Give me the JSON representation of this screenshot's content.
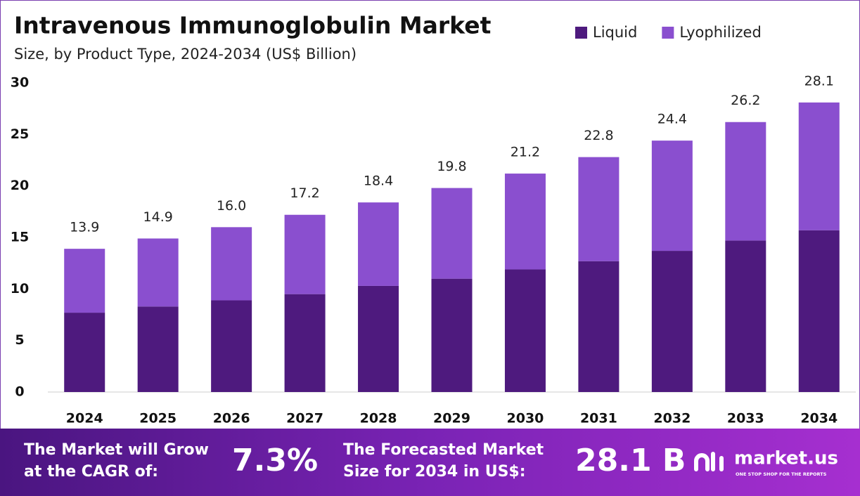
{
  "chart_data": {
    "type": "stacked_bar",
    "title": "Intravenous Immunoglobulin Market",
    "subtitle": "Size, by Product Type, 2024-2034 (US$ Billion)",
    "categories": [
      "2024",
      "2025",
      "2026",
      "2027",
      "2028",
      "2029",
      "2030",
      "2031",
      "2032",
      "2033",
      "2034"
    ],
    "series": [
      {
        "name": "Liquid",
        "color": "#4e1a7e",
        "values": [
          7.7,
          8.3,
          8.9,
          9.5,
          10.3,
          11.0,
          11.9,
          12.7,
          13.7,
          14.7,
          15.7
        ]
      },
      {
        "name": "Lyophilized",
        "color": "#8a4fcf",
        "values": [
          6.2,
          6.6,
          7.1,
          7.7,
          8.1,
          8.8,
          9.3,
          10.1,
          10.7,
          11.5,
          12.4
        ]
      }
    ],
    "totals": {
      "values": [
        13.9,
        14.9,
        16.0,
        17.2,
        18.4,
        19.8,
        21.2,
        22.8,
        24.4,
        26.2,
        28.1
      ],
      "value_labels": [
        "13.9",
        "14.9",
        "16.0",
        "17.2",
        "18.4",
        "19.8",
        "21.2",
        "22.8",
        "24.4",
        "26.2",
        "28.1"
      ]
    },
    "ylim": [
      0,
      30
    ],
    "yticks": [
      0,
      5,
      10,
      15,
      20,
      25,
      30
    ],
    "grid": false,
    "legend": "top-right"
  },
  "footer": {
    "cagr_text": [
      "The Market will Grow",
      "at the CAGR of:"
    ],
    "cagr_value": "7.3%",
    "forecast_text": [
      "The Forecasted Market",
      "Size for 2034 in US$:"
    ],
    "forecast_value": "28.1 B",
    "brand": "market.us",
    "tagline": "ONE STOP SHOP FOR THE REPORTS"
  }
}
